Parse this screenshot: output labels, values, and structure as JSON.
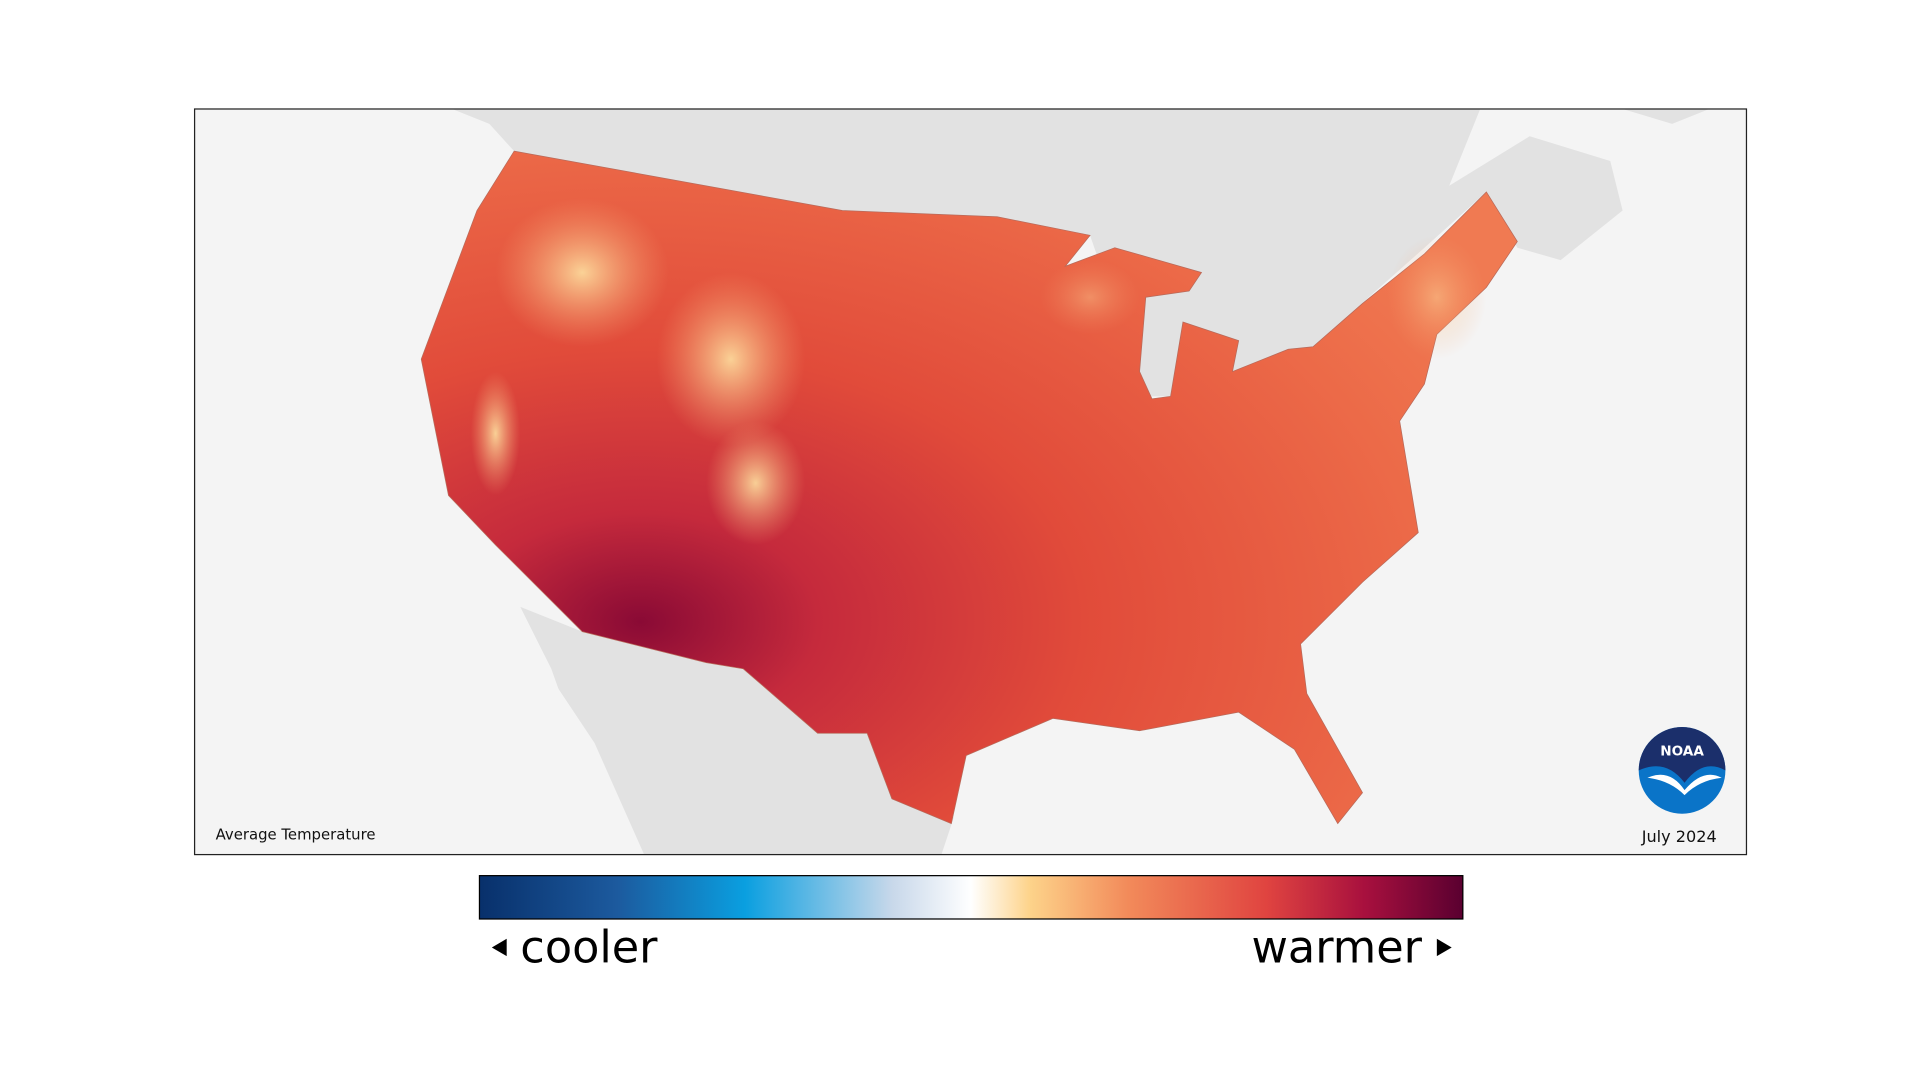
{
  "map": {
    "title": "Average Temperature",
    "date": "July 2024"
  },
  "legend": {
    "low_label": "cooler",
    "high_label": "warmer"
  },
  "logo": {
    "text": "NOAA"
  }
}
